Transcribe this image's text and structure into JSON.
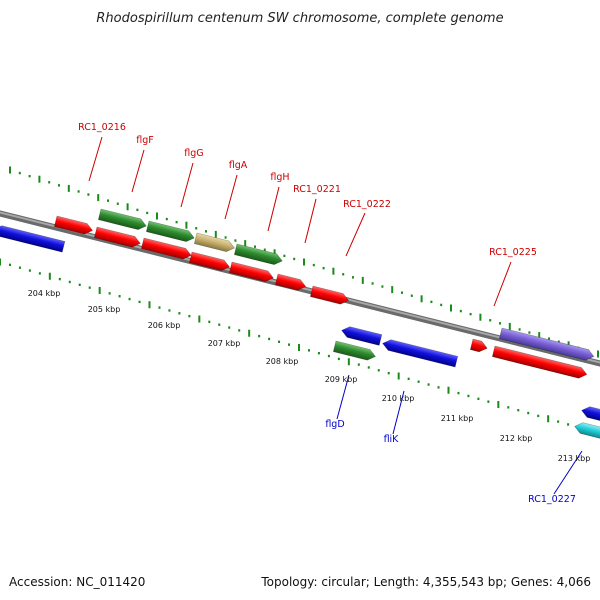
{
  "title": "Rhodospirillum centenum SW chromosome, complete genome",
  "footer": {
    "accession": "Accession: NC_011420",
    "topology": "Topology: circular; Length: 4,355,543 bp; Genes: 4,066"
  },
  "colors": {
    "backbone": "#8a8a8a",
    "tick": "#1a8a1a",
    "label_forward": "#cc0000",
    "label_reverse": "#0000cc",
    "red": "#ff0000",
    "green": "#2e8b2e",
    "tan": "#c8b070",
    "blue": "#1010dd",
    "purple": "#7a60d6",
    "cyan": "#20d0d8"
  },
  "scale": {
    "unit": "kbp",
    "labels": [
      "204 kbp",
      "205 kbp",
      "206 kbp",
      "207 kbp",
      "208 kbp",
      "209 kbp",
      "210 kbp",
      "211 kbp",
      "212 kbp",
      "213 kbp"
    ]
  },
  "gene_labels": {
    "forward": [
      "RC1_0216",
      "flgF",
      "flgG",
      "flgA",
      "flgH",
      "RC1_0221",
      "RC1_0222",
      "RC1_0225"
    ],
    "reverse": [
      "flgD",
      "fliK",
      "RC1_0227"
    ]
  }
}
